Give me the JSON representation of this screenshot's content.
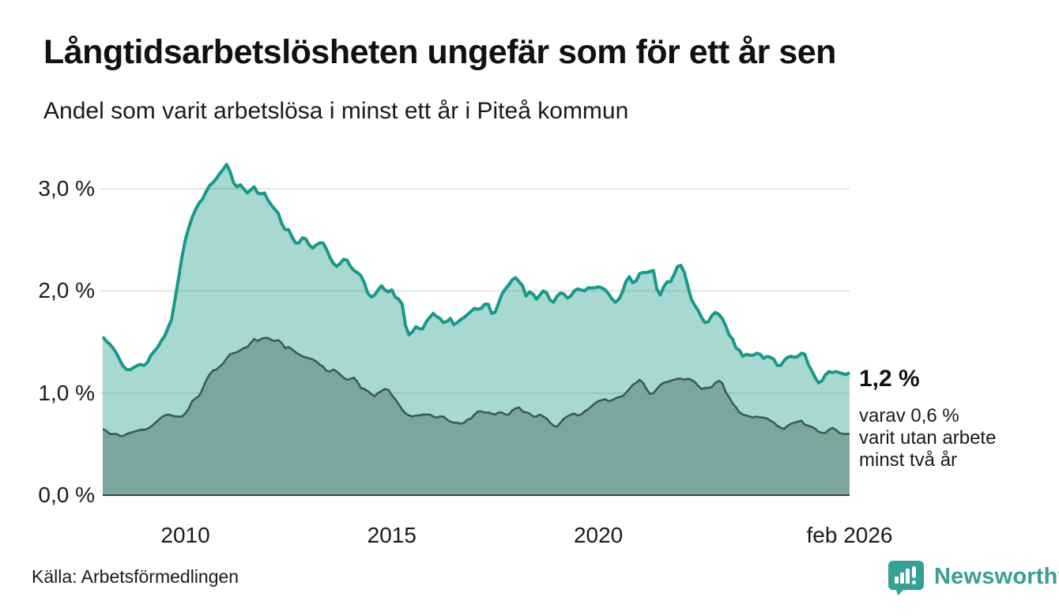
{
  "header": {
    "title": "Långtidsarbetslösheten ungefär som för ett år sen",
    "subtitle": "Andel som varit arbetslösa i minst ett år i Piteå kommun"
  },
  "chart_data": {
    "type": "area",
    "title": "Långtidsarbetslösheten ungefär som för ett år sen",
    "subtitle": "Andel som varit arbetslösa i minst ett år i Piteå kommun",
    "x_start": "2008-01",
    "x_end": "2026-02",
    "x_frequency": "monthly",
    "ylim": [
      0,
      3.5
    ],
    "grid": "horizontal",
    "legend_position": "none",
    "colors": {
      "total_line": "#17998a",
      "total_fill": "rgba(23,153,138,0.38)",
      "twoyear_line": "#3c5a55",
      "twoyear_fill": "#7aa69f",
      "gridline": "#e3e3e3",
      "axis_line": "#3f3f3f"
    },
    "y_ticks": [
      {
        "value": 3.0,
        "label": "3,0 %"
      },
      {
        "value": 2.0,
        "label": "2,0 %"
      },
      {
        "value": 1.0,
        "label": "1,0 %"
      },
      {
        "value": 0.0,
        "label": "0,0 %"
      }
    ],
    "x_ticks": [
      {
        "month_index": 24,
        "label": "2010"
      },
      {
        "month_index": 84,
        "label": "2015"
      },
      {
        "month_index": 144,
        "label": "2020"
      },
      {
        "month_index": 217,
        "label": "feb 2026"
      }
    ],
    "series": [
      {
        "name": "Andel arbetslösa minst ett år",
        "end_value": "1,2 %",
        "values": [
          1.55,
          1.51,
          1.48,
          1.44,
          1.39,
          1.32,
          1.26,
          1.23,
          1.23,
          1.25,
          1.27,
          1.28,
          1.27,
          1.3,
          1.37,
          1.41,
          1.45,
          1.51,
          1.56,
          1.64,
          1.72,
          1.92,
          2.12,
          2.33,
          2.5,
          2.62,
          2.72,
          2.8,
          2.86,
          2.9,
          2.97,
          3.03,
          3.06,
          3.1,
          3.15,
          3.19,
          3.24,
          3.17,
          3.06,
          3.02,
          3.04,
          3.0,
          2.96,
          2.99,
          3.02,
          2.96,
          2.95,
          2.96,
          2.89,
          2.84,
          2.8,
          2.76,
          2.66,
          2.6,
          2.6,
          2.53,
          2.47,
          2.47,
          2.52,
          2.51,
          2.45,
          2.42,
          2.45,
          2.47,
          2.47,
          2.41,
          2.33,
          2.27,
          2.24,
          2.27,
          2.31,
          2.3,
          2.24,
          2.2,
          2.18,
          2.15,
          2.08,
          1.98,
          1.94,
          1.96,
          2.01,
          2.05,
          2.01,
          1.99,
          2.01,
          1.94,
          1.92,
          1.87,
          1.66,
          1.57,
          1.6,
          1.65,
          1.63,
          1.63,
          1.7,
          1.74,
          1.78,
          1.75,
          1.73,
          1.69,
          1.7,
          1.73,
          1.67,
          1.69,
          1.72,
          1.74,
          1.77,
          1.8,
          1.83,
          1.82,
          1.83,
          1.87,
          1.87,
          1.78,
          1.79,
          1.88,
          1.97,
          2.02,
          2.06,
          2.11,
          2.13,
          2.09,
          2.05,
          1.95,
          1.99,
          1.97,
          1.92,
          1.96,
          2.0,
          1.98,
          1.91,
          1.89,
          1.95,
          1.98,
          1.97,
          1.93,
          1.95,
          2.0,
          2.02,
          2.01,
          2.0,
          2.03,
          2.03,
          2.03,
          2.04,
          2.03,
          2.01,
          1.97,
          1.92,
          1.89,
          1.92,
          1.99,
          2.09,
          2.14,
          2.08,
          2.1,
          2.17,
          2.18,
          2.18,
          2.19,
          2.2,
          2.02,
          1.96,
          2.04,
          2.09,
          2.09,
          2.16,
          2.24,
          2.25,
          2.18,
          2.05,
          1.92,
          1.86,
          1.81,
          1.74,
          1.69,
          1.7,
          1.76,
          1.79,
          1.77,
          1.73,
          1.66,
          1.57,
          1.53,
          1.44,
          1.42,
          1.36,
          1.38,
          1.37,
          1.37,
          1.39,
          1.38,
          1.34,
          1.36,
          1.35,
          1.33,
          1.27,
          1.27,
          1.32,
          1.35,
          1.36,
          1.35,
          1.36,
          1.39,
          1.38,
          1.28,
          1.22,
          1.15,
          1.1,
          1.12,
          1.18,
          1.21,
          1.2,
          1.21,
          1.2,
          1.19,
          1.18,
          1.2
        ]
      },
      {
        "name": "varav utan arbete minst två år",
        "end_value": "0,6 %",
        "values": [
          0.65,
          0.63,
          0.6,
          0.6,
          0.6,
          0.58,
          0.58,
          0.6,
          0.61,
          0.62,
          0.63,
          0.64,
          0.64,
          0.65,
          0.67,
          0.7,
          0.73,
          0.76,
          0.78,
          0.79,
          0.78,
          0.77,
          0.77,
          0.77,
          0.8,
          0.85,
          0.92,
          0.95,
          0.97,
          1.04,
          1.12,
          1.18,
          1.22,
          1.23,
          1.26,
          1.29,
          1.34,
          1.38,
          1.39,
          1.4,
          1.42,
          1.44,
          1.45,
          1.49,
          1.53,
          1.51,
          1.53,
          1.54,
          1.54,
          1.52,
          1.51,
          1.52,
          1.49,
          1.44,
          1.45,
          1.43,
          1.4,
          1.38,
          1.36,
          1.35,
          1.34,
          1.33,
          1.31,
          1.28,
          1.26,
          1.22,
          1.21,
          1.23,
          1.21,
          1.18,
          1.15,
          1.13,
          1.14,
          1.15,
          1.11,
          1.05,
          1.04,
          1.02,
          0.99,
          0.97,
          1.0,
          1.02,
          1.04,
          1.03,
          0.98,
          0.94,
          0.89,
          0.84,
          0.8,
          0.78,
          0.77,
          0.78,
          0.78,
          0.79,
          0.79,
          0.79,
          0.77,
          0.76,
          0.77,
          0.77,
          0.74,
          0.72,
          0.71,
          0.71,
          0.7,
          0.71,
          0.74,
          0.75,
          0.79,
          0.82,
          0.82,
          0.81,
          0.81,
          0.8,
          0.79,
          0.81,
          0.81,
          0.79,
          0.79,
          0.83,
          0.85,
          0.86,
          0.82,
          0.81,
          0.8,
          0.77,
          0.77,
          0.79,
          0.77,
          0.75,
          0.71,
          0.68,
          0.67,
          0.71,
          0.75,
          0.77,
          0.79,
          0.8,
          0.78,
          0.79,
          0.82,
          0.84,
          0.87,
          0.9,
          0.92,
          0.93,
          0.94,
          0.92,
          0.93,
          0.95,
          0.96,
          0.97,
          1.0,
          1.04,
          1.08,
          1.1,
          1.13,
          1.1,
          1.04,
          0.99,
          1.0,
          1.04,
          1.08,
          1.1,
          1.11,
          1.12,
          1.13,
          1.14,
          1.14,
          1.13,
          1.14,
          1.13,
          1.11,
          1.07,
          1.04,
          1.05,
          1.05,
          1.06,
          1.1,
          1.12,
          1.1,
          1.01,
          0.96,
          0.9,
          0.86,
          0.81,
          0.79,
          0.78,
          0.77,
          0.76,
          0.77,
          0.76,
          0.76,
          0.75,
          0.73,
          0.71,
          0.68,
          0.66,
          0.65,
          0.68,
          0.7,
          0.71,
          0.72,
          0.73,
          0.69,
          0.68,
          0.67,
          0.65,
          0.62,
          0.61,
          0.61,
          0.64,
          0.66,
          0.64,
          0.61,
          0.6,
          0.6,
          0.6
        ]
      }
    ]
  },
  "annotation": {
    "value_label": "1,2 %",
    "description": "varav 0,6 %\nvarit utan arbete\nminst två år"
  },
  "source": {
    "text": "Källa: Arbetsförmedlingen"
  },
  "branding": {
    "name": "Newsworthy"
  }
}
